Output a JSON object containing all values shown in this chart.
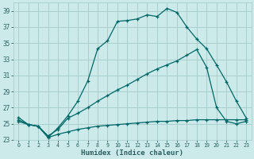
{
  "xlabel": "Humidex (Indice chaleur)",
  "bg_color": "#cdeaea",
  "grid_color": "#aacece",
  "line_color": "#006868",
  "xlim": [
    -0.5,
    23.5
  ],
  "ylim": [
    23,
    40
  ],
  "yticks": [
    23,
    25,
    27,
    29,
    31,
    33,
    35,
    37,
    39
  ],
  "xticks": [
    0,
    1,
    2,
    3,
    4,
    5,
    6,
    7,
    8,
    9,
    10,
    11,
    12,
    13,
    14,
    15,
    16,
    17,
    18,
    19,
    20,
    21,
    22,
    23
  ],
  "series1_x": [
    0,
    1,
    2,
    3,
    4,
    5,
    6,
    7,
    8,
    9,
    10,
    11,
    12,
    13,
    14,
    15,
    16,
    17,
    18,
    19,
    20,
    21,
    22,
    23
  ],
  "series1_y": [
    25.8,
    24.9,
    24.7,
    23.3,
    24.5,
    26.0,
    27.8,
    30.3,
    34.3,
    35.3,
    37.7,
    37.8,
    38.0,
    38.5,
    38.3,
    39.3,
    38.8,
    37.0,
    35.5,
    34.3,
    32.3,
    30.2,
    27.8,
    25.7
  ],
  "series2_x": [
    0,
    1,
    2,
    3,
    4,
    5,
    6,
    7,
    8,
    9,
    10,
    11,
    12,
    13,
    14,
    15,
    16,
    17,
    18,
    19,
    20,
    21,
    22,
    23
  ],
  "series2_y": [
    25.5,
    24.9,
    24.7,
    23.5,
    24.3,
    25.7,
    26.3,
    27.0,
    27.8,
    28.5,
    29.2,
    29.8,
    30.5,
    31.2,
    31.8,
    32.3,
    32.8,
    33.5,
    34.2,
    32.0,
    27.0,
    25.3,
    25.0,
    25.3
  ],
  "series3_x": [
    0,
    1,
    2,
    3,
    4,
    5,
    6,
    7,
    8,
    9,
    10,
    11,
    12,
    13,
    14,
    15,
    16,
    17,
    18,
    19,
    20,
    21,
    22,
    23
  ],
  "series3_y": [
    25.3,
    24.9,
    24.7,
    23.3,
    23.7,
    24.0,
    24.3,
    24.5,
    24.7,
    24.8,
    24.9,
    25.0,
    25.1,
    25.2,
    25.3,
    25.3,
    25.4,
    25.4,
    25.5,
    25.5,
    25.5,
    25.5,
    25.5,
    25.5
  ]
}
